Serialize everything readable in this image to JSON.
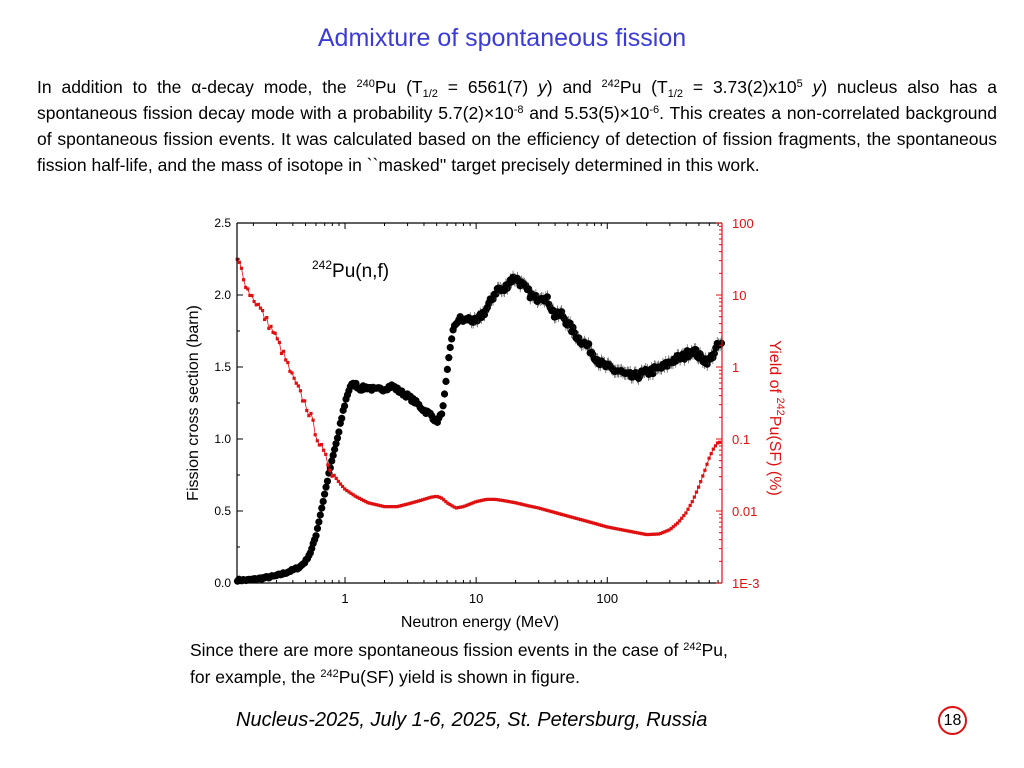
{
  "slide": {
    "title": "Admixture of spontaneous fission",
    "intro": {
      "t1": "In addition to the α-decay mode, the ",
      "m1": "240",
      "t2": "Pu (T",
      "s1": "1/2",
      "t3": " = 6561(7) ",
      "i1": "y",
      "t4": ") and ",
      "m2": "242",
      "t5": "Pu (T",
      "s2": "1/2",
      "t6": " = 3.73(2)x10",
      "e1": "5",
      "t7": " ",
      "i2": "y",
      "t8": ") nucleus also has a spontaneous fission decay mode with a probability 5.7(2)×10",
      "e2": "-8",
      "t9": " and 5.53(5)×10",
      "e3": "-6",
      "t10": ". This creates a non-correlated background of spontaneous fission events. It was calculated based on the efficiency of detection of fission fragments, the spontaneous fission half-life, and the mass of isotope in ``masked'' target precisely determined  in this work."
    },
    "caption": {
      "c1": "Since there are more spontaneous fission events in the case of ",
      "c2": "242",
      "c3": "Pu,",
      "c4": "for example, the ",
      "c5": "242",
      "c6": "Pu(SF) yield is shown in figure."
    },
    "footer": "Nucleus-2025, July 1-6, 2025, St. Petersburg, Russia",
    "page_number": "18"
  },
  "chart_data": {
    "type": "scatter",
    "annotation": {
      "sup": "242",
      "text": "Pu(n,f)"
    },
    "xlabel": "Neutron energy (MeV)",
    "ylabel": "Fission cross section (barn)",
    "y2label": {
      "pre": "Yield of ",
      "sup": "242",
      "post": "Pu(SF) (%)"
    },
    "x_scale": "log",
    "xlim": [
      0.15,
      750
    ],
    "ylim": [
      0,
      2.5
    ],
    "y2_scale": "log",
    "y2lim": [
      0.001,
      100
    ],
    "x_ticks": [
      1,
      10,
      100
    ],
    "x_tick_labels": [
      "1",
      "10",
      "100"
    ],
    "y_ticks": [
      0.0,
      0.5,
      1.0,
      1.5,
      2.0,
      2.5
    ],
    "y_tick_labels": [
      "0.0",
      "0.5",
      "1.0",
      "1.5",
      "2.0",
      "2.5"
    ],
    "y2_ticks": [
      0.001,
      0.01,
      0.1,
      1,
      10,
      100
    ],
    "y2_tick_labels": [
      "1E-3",
      "0.01",
      "0.1",
      "1",
      "10",
      "100"
    ],
    "colors": {
      "cross_section": "#000000",
      "sf_yield": "#e01010"
    },
    "series": [
      {
        "axis": "left",
        "style": "markers-with-error-bars",
        "x": [
          0.15,
          0.18,
          0.22,
          0.26,
          0.3,
          0.35,
          0.4,
          0.45,
          0.5,
          0.55,
          0.6,
          0.65,
          0.7,
          0.75,
          0.8,
          0.85,
          0.9,
          0.95,
          1.0,
          1.05,
          1.1,
          1.2,
          1.3,
          1.5,
          1.7,
          2.0,
          2.3,
          2.6,
          3.0,
          3.5,
          4.0,
          4.5,
          5.0,
          5.3,
          5.6,
          6.0,
          6.3,
          6.6,
          7.0,
          7.5,
          8.0,
          9.0,
          10.0,
          11.0,
          12.0,
          13.0,
          14.0,
          15.0,
          16.0,
          18.0,
          20.0,
          22.0,
          25.0,
          28.0,
          32.0,
          36.0,
          40.0,
          45.0,
          50.0,
          55.0,
          60.0,
          70.0,
          80.0,
          90.0,
          100.0,
          110.0,
          125.0,
          140.0,
          160.0,
          180.0,
          200.0,
          230.0,
          270.0,
          320.0,
          380.0,
          450.0,
          520.0,
          600.0,
          700.0
        ],
        "y": [
          0.02,
          0.02,
          0.03,
          0.04,
          0.05,
          0.07,
          0.09,
          0.11,
          0.15,
          0.22,
          0.33,
          0.48,
          0.62,
          0.75,
          0.86,
          0.96,
          1.05,
          1.16,
          1.25,
          1.32,
          1.37,
          1.38,
          1.35,
          1.36,
          1.34,
          1.35,
          1.37,
          1.33,
          1.3,
          1.25,
          1.2,
          1.17,
          1.12,
          1.15,
          1.22,
          1.45,
          1.62,
          1.74,
          1.8,
          1.84,
          1.82,
          1.84,
          1.8,
          1.86,
          1.9,
          1.96,
          2.02,
          2.05,
          2.02,
          2.1,
          2.12,
          2.08,
          2.02,
          1.97,
          2.0,
          1.95,
          1.85,
          1.87,
          1.8,
          1.75,
          1.7,
          1.65,
          1.58,
          1.52,
          1.5,
          1.48,
          1.47,
          1.44,
          1.43,
          1.45,
          1.46,
          1.48,
          1.5,
          1.55,
          1.57,
          1.62,
          1.56,
          1.54,
          1.65
        ]
      },
      {
        "axis": "right",
        "style": "line-with-markers",
        "x": [
          0.15,
          0.16,
          0.18,
          0.2,
          0.22,
          0.25,
          0.28,
          0.3,
          0.35,
          0.4,
          0.45,
          0.5,
          0.55,
          0.6,
          0.65,
          0.7,
          0.75,
          0.8,
          0.9,
          1.0,
          1.2,
          1.5,
          2.0,
          2.5,
          3.0,
          3.5,
          4.0,
          4.5,
          5.0,
          5.5,
          6.0,
          7.0,
          8.0,
          10.0,
          12.0,
          14.0,
          16.0,
          20.0,
          25.0,
          30.0,
          40.0,
          50.0,
          70.0,
          100.0,
          150.0,
          200.0,
          250.0,
          300.0,
          350.0,
          400.0,
          450.0,
          500.0,
          550.0,
          600.0,
          650.0,
          700.0
        ],
        "y": [
          30,
          25,
          12,
          9,
          7,
          4.5,
          3.2,
          2.5,
          1.3,
          0.7,
          0.45,
          0.3,
          0.2,
          0.12,
          0.08,
          0.058,
          0.044,
          0.034,
          0.025,
          0.02,
          0.016,
          0.013,
          0.0115,
          0.0115,
          0.0125,
          0.0135,
          0.0145,
          0.0155,
          0.016,
          0.015,
          0.013,
          0.011,
          0.0115,
          0.0135,
          0.0145,
          0.0145,
          0.014,
          0.013,
          0.0118,
          0.011,
          0.0095,
          0.0085,
          0.0072,
          0.006,
          0.0052,
          0.0047,
          0.0048,
          0.0055,
          0.007,
          0.0095,
          0.014,
          0.022,
          0.035,
          0.055,
          0.075,
          0.09
        ]
      }
    ]
  }
}
